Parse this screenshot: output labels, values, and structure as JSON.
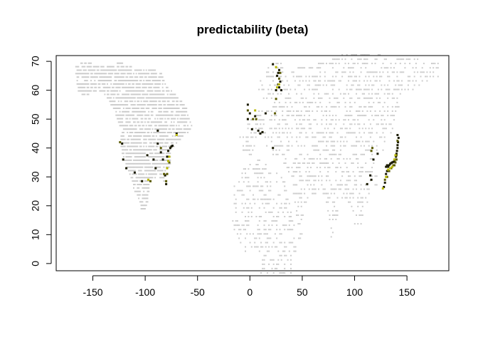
{
  "chart_data": {
    "type": "scatter",
    "title": "predictability (beta)",
    "xlabel": "",
    "ylabel": "",
    "xlim": [
      -185,
      190
    ],
    "ylim": [
      -2.5,
      72
    ],
    "xticks": [
      -150,
      -100,
      -50,
      0,
      50,
      100,
      150
    ],
    "yticks": [
      0,
      10,
      20,
      30,
      40,
      50,
      60,
      70
    ],
    "xtick_labels": [
      "-150",
      "-100",
      "-50",
      "0",
      "50",
      "100",
      "150"
    ],
    "ytick_labels": [
      "0",
      "10",
      "20",
      "30",
      "40",
      "50",
      "60",
      "70"
    ],
    "grid": false,
    "legend": "none",
    "colors": {
      "background": "#cccccc",
      "point_dark": "#1a1a00",
      "point_olive": "#5a5a00",
      "point_yellow": "#b8b800"
    },
    "background_regions": [
      {
        "name": "north-america",
        "polygon": [
          [
            -168,
            69
          ],
          [
            -160,
            70
          ],
          [
            -140,
            69
          ],
          [
            -125,
            70
          ],
          [
            -110,
            68
          ],
          [
            -95,
            68
          ],
          [
            -85,
            66
          ],
          [
            -80,
            62
          ],
          [
            -75,
            60
          ],
          [
            -70,
            58
          ],
          [
            -62,
            55
          ],
          [
            -58,
            50
          ],
          [
            -55,
            47
          ],
          [
            -65,
            44
          ],
          [
            -70,
            42
          ],
          [
            -74,
            40
          ],
          [
            -76,
            36
          ],
          [
            -78,
            33
          ],
          [
            -81,
            30
          ],
          [
            -81,
            26
          ],
          [
            -84,
            29
          ],
          [
            -89,
            29
          ],
          [
            -94,
            29
          ],
          [
            -97,
            26
          ],
          [
            -98,
            22
          ],
          [
            -101,
            19
          ],
          [
            -104,
            18
          ],
          [
            -106,
            22
          ],
          [
            -110,
            24
          ],
          [
            -113,
            28
          ],
          [
            -116,
            31
          ],
          [
            -118,
            34
          ],
          [
            -122,
            37
          ],
          [
            -124,
            40
          ],
          [
            -124,
            46
          ],
          [
            -127,
            50
          ],
          [
            -133,
            55
          ],
          [
            -140,
            59
          ],
          [
            -150,
            60
          ],
          [
            -158,
            58
          ],
          [
            -165,
            60
          ],
          [
            -166,
            64
          ]
        ]
      },
      {
        "name": "europe-north",
        "polygon": [
          [
            5,
            58
          ],
          [
            8,
            62
          ],
          [
            12,
            66
          ],
          [
            18,
            69
          ],
          [
            28,
            71
          ],
          [
            32,
            69
          ],
          [
            30,
            65
          ],
          [
            26,
            61
          ],
          [
            20,
            57
          ],
          [
            10,
            56
          ]
        ]
      },
      {
        "name": "eurasia",
        "polygon": [
          [
            -10,
            44
          ],
          [
            -9,
            38
          ],
          [
            -5,
            36
          ],
          [
            2,
            38
          ],
          [
            6,
            42
          ],
          [
            10,
            44
          ],
          [
            15,
            41
          ],
          [
            18,
            40
          ],
          [
            22,
            37
          ],
          [
            26,
            37
          ],
          [
            30,
            36
          ],
          [
            36,
            33
          ],
          [
            35,
            28
          ],
          [
            40,
            22
          ],
          [
            46,
            13
          ],
          [
            52,
            18
          ],
          [
            58,
            22
          ],
          [
            66,
            25
          ],
          [
            72,
            21
          ],
          [
            77,
            8
          ],
          [
            80,
            13
          ],
          [
            88,
            22
          ],
          [
            92,
            22
          ],
          [
            98,
            16
          ],
          [
            100,
            13
          ],
          [
            105,
            10
          ],
          [
            108,
            16
          ],
          [
            110,
            21
          ],
          [
            117,
            23
          ],
          [
            120,
            26
          ],
          [
            122,
            31
          ],
          [
            122,
            37
          ],
          [
            126,
            38
          ],
          [
            130,
            43
          ],
          [
            135,
            46
          ],
          [
            140,
            52
          ],
          [
            145,
            59
          ],
          [
            155,
            60
          ],
          [
            162,
            62
          ],
          [
            172,
            64
          ],
          [
            180,
            65
          ],
          [
            180,
            70
          ],
          [
            160,
            71
          ],
          [
            140,
            72
          ],
          [
            120,
            73
          ],
          [
            100,
            74
          ],
          [
            80,
            72
          ],
          [
            70,
            70
          ],
          [
            60,
            69
          ],
          [
            45,
            68
          ],
          [
            35,
            66
          ],
          [
            30,
            64
          ],
          [
            25,
            58
          ],
          [
            20,
            55
          ],
          [
            12,
            54
          ],
          [
            6,
            53
          ],
          [
            2,
            51
          ],
          [
            -5,
            48
          ]
        ]
      },
      {
        "name": "africa-north",
        "polygon": [
          [
            -17,
            21
          ],
          [
            -16,
            28
          ],
          [
            -10,
            30
          ],
          [
            -5,
            35
          ],
          [
            10,
            37
          ],
          [
            20,
            32
          ],
          [
            32,
            31
          ],
          [
            35,
            25
          ],
          [
            40,
            16
          ],
          [
            43,
            12
          ],
          [
            51,
            11
          ],
          [
            45,
            5
          ],
          [
            40,
            0
          ],
          [
            40,
            -3
          ],
          [
            10,
            -3
          ],
          [
            9,
            4
          ],
          [
            0,
            5
          ],
          [
            -8,
            4
          ],
          [
            -13,
            8
          ],
          [
            -17,
            14
          ]
        ]
      }
    ],
    "series": [
      {
        "values": [
          [
            -122,
            41.5
          ],
          [
            -121,
            36
          ],
          [
            -118,
            33
          ],
          [
            -110,
            31.5
          ],
          [
            -103,
            28.5
          ],
          [
            -98,
            37.5
          ],
          [
            -92,
            36
          ],
          [
            -90,
            33
          ],
          [
            -88,
            41.5
          ],
          [
            -85,
            38.5
          ],
          [
            -83,
            36
          ],
          [
            -81,
            30.5
          ],
          [
            -80,
            27.5
          ],
          [
            -79,
            37
          ],
          [
            -78,
            39
          ],
          [
            -76,
            40
          ],
          [
            -75,
            40.5
          ],
          [
            -74,
            40.8
          ],
          [
            -88,
            46
          ],
          [
            -70,
            45
          ],
          [
            -2,
            55
          ],
          [
            0,
            52
          ],
          [
            2,
            46.5
          ],
          [
            5,
            51
          ],
          [
            8,
            46
          ],
          [
            10,
            45
          ],
          [
            12,
            45.5
          ],
          [
            15,
            52
          ],
          [
            22,
            69
          ],
          [
            25,
            60
          ],
          [
            26,
            65
          ],
          [
            27,
            66
          ],
          [
            28,
            61
          ],
          [
            28,
            67
          ],
          [
            29,
            63
          ],
          [
            30,
            60
          ],
          [
            -2,
            50
          ],
          [
            22,
            40
          ],
          [
            122,
            38
          ],
          [
            118,
            36
          ],
          [
            112,
            27.5
          ],
          [
            116,
            29
          ],
          [
            115,
            30.5
          ],
          [
            130,
            33.5
          ],
          [
            131,
            34
          ],
          [
            132,
            33.5
          ],
          [
            133,
            34
          ],
          [
            134,
            34.5
          ],
          [
            135,
            34.8
          ],
          [
            136,
            35
          ],
          [
            137,
            35.2
          ],
          [
            138,
            35.5
          ],
          [
            139,
            36
          ],
          [
            139.5,
            37
          ],
          [
            140,
            38
          ],
          [
            140.5,
            39
          ],
          [
            141,
            40
          ],
          [
            141,
            41
          ],
          [
            141.5,
            42
          ],
          [
            142,
            43.5
          ],
          [
            141,
            44.5
          ],
          [
            129,
            28
          ],
          [
            128,
            26.5
          ],
          [
            130,
            31
          ],
          [
            131,
            32
          ]
        ]
      },
      {
        "values": [
          [
            -124,
            42
          ],
          [
            -95,
            28.5
          ],
          [
            -85,
            40
          ],
          [
            -82,
            31
          ],
          [
            -80,
            28.5
          ],
          [
            -79,
            31
          ],
          [
            -77,
            35
          ],
          [
            -2,
            53
          ],
          [
            3,
            50
          ],
          [
            6,
            50
          ],
          [
            24,
            52
          ],
          [
            25,
            57
          ],
          [
            27,
            62
          ],
          [
            28,
            64
          ],
          [
            29,
            66
          ],
          [
            131,
            30
          ],
          [
            133,
            32
          ],
          [
            135,
            33
          ],
          [
            137,
            34
          ],
          [
            138,
            34
          ],
          [
            139,
            35
          ],
          [
            140,
            36
          ],
          [
            140,
            37.5
          ],
          [
            141,
            42.5
          ],
          [
            116,
            39
          ],
          [
            117,
            40
          ],
          [
            129,
            29
          ]
        ]
      },
      {
        "values": [
          [
            -97,
            29
          ],
          [
            -79,
            33
          ],
          [
            -78,
            35.5
          ],
          [
            -77,
            37
          ],
          [
            -70,
            44.5
          ],
          [
            5,
            53
          ],
          [
            25,
            68
          ],
          [
            26,
            61
          ],
          [
            28,
            62
          ],
          [
            132,
            32.5
          ],
          [
            134,
            33
          ],
          [
            136,
            33.5
          ],
          [
            138,
            36
          ],
          [
            139,
            37.5
          ],
          [
            127,
            26
          ],
          [
            130,
            30
          ]
        ]
      }
    ]
  }
}
